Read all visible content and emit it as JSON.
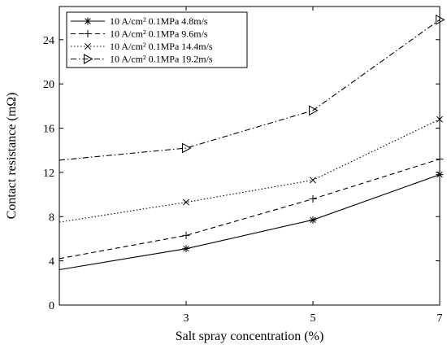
{
  "chart_data": {
    "type": "line",
    "title": "",
    "xlabel": "Salt spray concentration (%)",
    "ylabel": "Contact resistance (mΩ)",
    "xlim": [
      1,
      7
    ],
    "ylim": [
      0,
      27
    ],
    "xticks": [
      3,
      5,
      7
    ],
    "yticks": [
      0,
      4,
      8,
      12,
      16,
      20,
      24
    ],
    "grid": false,
    "legend_position": "top-left",
    "x": [
      1,
      3,
      5,
      7
    ],
    "series": [
      {
        "name": "10 A/cm² 0.1MPa 4.8m/s",
        "values": [
          3.2,
          5.1,
          7.7,
          11.8
        ],
        "marker": "asterisk",
        "dash": "solid"
      },
      {
        "name": "10 A/cm² 0.1MPa 9.6m/s",
        "values": [
          4.2,
          6.3,
          9.6,
          13.2
        ],
        "marker": "plus",
        "dash": "dashed"
      },
      {
        "name": "10 A/cm² 0.1MPa 14.4m/s",
        "values": [
          7.5,
          9.3,
          11.3,
          16.8
        ],
        "marker": "cross",
        "dash": "dotted"
      },
      {
        "name": "10 A/cm² 0.1MPa 19.2m/s",
        "values": [
          13.1,
          14.2,
          17.6,
          25.8
        ],
        "marker": "triangle-right",
        "dash": "dashdot"
      }
    ]
  }
}
